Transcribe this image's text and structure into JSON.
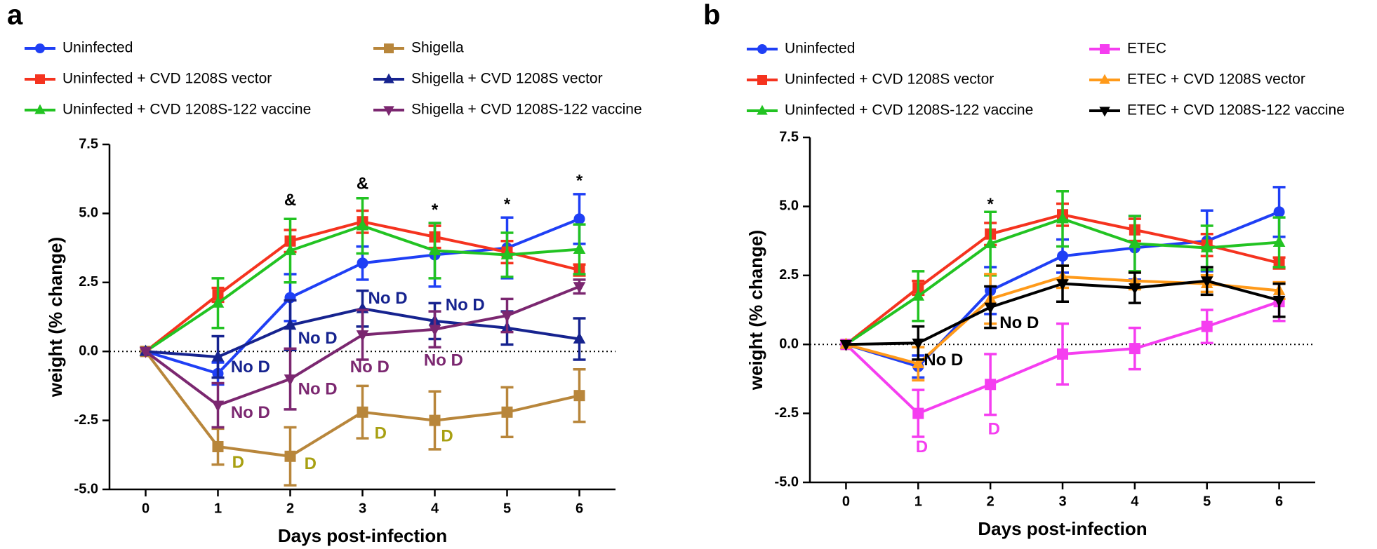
{
  "chart_data": [
    {
      "type": "line",
      "panel_label": "a",
      "xlabel": "Days post-infection",
      "ylabel": "weight (% change)",
      "x": [
        0,
        1,
        2,
        3,
        4,
        5,
        6
      ],
      "xlim": [
        -0.5,
        6.5
      ],
      "xticks": [
        0,
        1,
        2,
        3,
        4,
        5,
        6
      ],
      "ylim": [
        -5,
        7.5
      ],
      "yticks": [
        {
          "value": -5,
          "label": "-5.0"
        },
        {
          "value": -2.5,
          "label": "-2.5"
        },
        {
          "value": 0,
          "label": "0.0"
        },
        {
          "value": 2.5,
          "label": "2.5"
        },
        {
          "value": 5,
          "label": "5.0"
        },
        {
          "value": 7.5,
          "label": "7.5"
        }
      ],
      "series": [
        {
          "name": "Uninfected",
          "color": "#1f3ff5",
          "marker": "circle",
          "values": [
            0,
            -0.8,
            1.95,
            3.2,
            3.5,
            3.75,
            4.8
          ],
          "errors": [
            null,
            0.4,
            0.85,
            0.6,
            1.15,
            1.1,
            0.9
          ]
        },
        {
          "name": "Uninfected + CVD 1208S vector",
          "color": "#f5331f",
          "marker": "square",
          "values": [
            0,
            2.05,
            4.0,
            4.7,
            4.15,
            3.6,
            2.95
          ],
          "errors": [
            null,
            0.25,
            0.4,
            0.4,
            0.4,
            0.4,
            0.2
          ]
        },
        {
          "name": "Uninfected + CVD 1208S-122 vaccine",
          "color": "#22c322",
          "marker": "triangle",
          "values": [
            0,
            1.75,
            3.65,
            4.55,
            3.65,
            3.5,
            3.7
          ],
          "errors": [
            null,
            0.9,
            1.15,
            1.0,
            1.0,
            0.8,
            0.9
          ]
        },
        {
          "name": "Shigella",
          "color": "#b8863b",
          "marker": "square",
          "values": [
            0,
            -3.45,
            -3.8,
            -2.2,
            -2.5,
            -2.2,
            -1.6
          ],
          "errors": [
            null,
            0.65,
            1.05,
            0.95,
            1.05,
            0.9,
            0.95
          ]
        },
        {
          "name": "Shigella + CVD 1208S vector",
          "color": "#16238f",
          "marker": "triangle",
          "values": [
            0,
            -0.2,
            0.95,
            1.55,
            1.1,
            0.85,
            0.45
          ],
          "errors": [
            null,
            0.75,
            0.9,
            0.65,
            0.65,
            0.6,
            0.75
          ]
        },
        {
          "name": "Shigella + CVD 1208S-122 vaccine",
          "color": "#7b2770",
          "marker": "triangle-down",
          "values": [
            0,
            -1.95,
            -1.0,
            0.6,
            0.8,
            1.3,
            2.35
          ],
          "errors": [
            null,
            0.8,
            1.1,
            0.9,
            0.65,
            0.6,
            0.25
          ]
        }
      ],
      "annotations": [
        {
          "text": "&",
          "x": 2,
          "y": 5.45,
          "color": "#000000"
        },
        {
          "text": "&",
          "x": 3,
          "y": 6.05,
          "color": "#000000"
        },
        {
          "text": "*",
          "x": 4,
          "y": 5.1,
          "color": "#000000"
        },
        {
          "text": "*",
          "x": 5,
          "y": 5.3,
          "color": "#000000"
        },
        {
          "text": "*",
          "x": 6,
          "y": 6.15,
          "color": "#000000"
        },
        {
          "text": "No D",
          "x": 1.45,
          "y": -0.6,
          "color": "#16238f"
        },
        {
          "text": "No D",
          "x": 2.38,
          "y": 0.45,
          "color": "#16238f"
        },
        {
          "text": "No D",
          "x": 3.35,
          "y": 1.9,
          "color": "#16238f"
        },
        {
          "text": "No D",
          "x": 4.42,
          "y": 1.65,
          "color": "#16238f"
        },
        {
          "text": "No D",
          "x": 1.45,
          "y": -2.25,
          "color": "#7b2770"
        },
        {
          "text": "No D",
          "x": 2.38,
          "y": -1.4,
          "color": "#7b2770"
        },
        {
          "text": "No D",
          "x": 3.1,
          "y": -0.6,
          "color": "#7b2770"
        },
        {
          "text": "No D",
          "x": 4.12,
          "y": -0.35,
          "color": "#7b2770"
        },
        {
          "text": "D",
          "x": 1.28,
          "y": -4.05,
          "color": "#a8a012"
        },
        {
          "text": "D",
          "x": 2.28,
          "y": -4.1,
          "color": "#a8a012"
        },
        {
          "text": "D",
          "x": 3.25,
          "y": -3.0,
          "color": "#a8a012"
        },
        {
          "text": "D",
          "x": 4.17,
          "y": -3.1,
          "color": "#a8a012"
        }
      ]
    },
    {
      "type": "line",
      "panel_label": "b",
      "xlabel": "Days post-infection",
      "ylabel": "weight (% change)",
      "x": [
        0,
        1,
        2,
        3,
        4,
        5,
        6
      ],
      "xlim": [
        -0.5,
        6.5
      ],
      "xticks": [
        0,
        1,
        2,
        3,
        4,
        5,
        6
      ],
      "ylim": [
        -5,
        7.5
      ],
      "yticks": [
        {
          "value": -5,
          "label": "-5.0"
        },
        {
          "value": -2.5,
          "label": "-2.5"
        },
        {
          "value": 0,
          "label": "0.0"
        },
        {
          "value": 2.5,
          "label": "2.5"
        },
        {
          "value": 5,
          "label": "5.0"
        },
        {
          "value": 7.5,
          "label": "7.5"
        }
      ],
      "series": [
        {
          "name": "Uninfected",
          "color": "#1f3ff5",
          "marker": "circle",
          "values": [
            0,
            -0.8,
            1.95,
            3.2,
            3.5,
            3.75,
            4.8
          ],
          "errors": [
            null,
            0.4,
            0.85,
            0.6,
            1.15,
            1.1,
            0.9
          ]
        },
        {
          "name": "Uninfected + CVD 1208S vector",
          "color": "#f5331f",
          "marker": "square",
          "values": [
            0,
            2.05,
            4.0,
            4.7,
            4.15,
            3.6,
            2.95
          ],
          "errors": [
            null,
            0.25,
            0.4,
            0.4,
            0.4,
            0.4,
            0.2
          ]
        },
        {
          "name": "Uninfected + CVD 1208S-122 vaccine",
          "color": "#22c322",
          "marker": "triangle",
          "values": [
            0,
            1.75,
            3.65,
            4.55,
            3.65,
            3.5,
            3.7
          ],
          "errors": [
            null,
            0.9,
            1.15,
            1.0,
            1.0,
            0.8,
            0.9
          ]
        },
        {
          "name": "ETEC",
          "color": "#f53ef0",
          "marker": "square",
          "values": [
            0,
            -2.5,
            -1.45,
            -0.35,
            -0.15,
            0.65,
            1.55
          ],
          "errors": [
            null,
            0.85,
            1.1,
            1.1,
            0.75,
            0.6,
            0.7
          ]
        },
        {
          "name": "ETEC + CVD 1208S vector",
          "color": "#ff9a1a",
          "marker": "triangle",
          "values": [
            0,
            -0.7,
            1.65,
            2.45,
            2.3,
            2.2,
            1.95
          ],
          "errors": [
            null,
            0.6,
            0.9,
            0.4,
            0.3,
            0.3,
            0.3
          ]
        },
        {
          "name": "ETEC + CVD 1208S-122 vaccine",
          "color": "#000000",
          "marker": "triangle-down",
          "values": [
            0,
            0.05,
            1.35,
            2.2,
            2.05,
            2.3,
            1.6
          ],
          "errors": [
            null,
            0.6,
            0.75,
            0.65,
            0.55,
            0.5,
            0.6
          ]
        }
      ],
      "annotations": [
        {
          "text": "*",
          "x": 2,
          "y": 5.05,
          "color": "#000000"
        },
        {
          "text": "No D",
          "x": 1.35,
          "y": -0.6,
          "color": "#000000"
        },
        {
          "text": "No D",
          "x": 2.4,
          "y": 0.75,
          "color": "#000000"
        },
        {
          "text": "D",
          "x": 1.05,
          "y": -3.75,
          "color": "#f53ef0"
        },
        {
          "text": "D",
          "x": 2.05,
          "y": -3.1,
          "color": "#f53ef0"
        }
      ]
    }
  ]
}
